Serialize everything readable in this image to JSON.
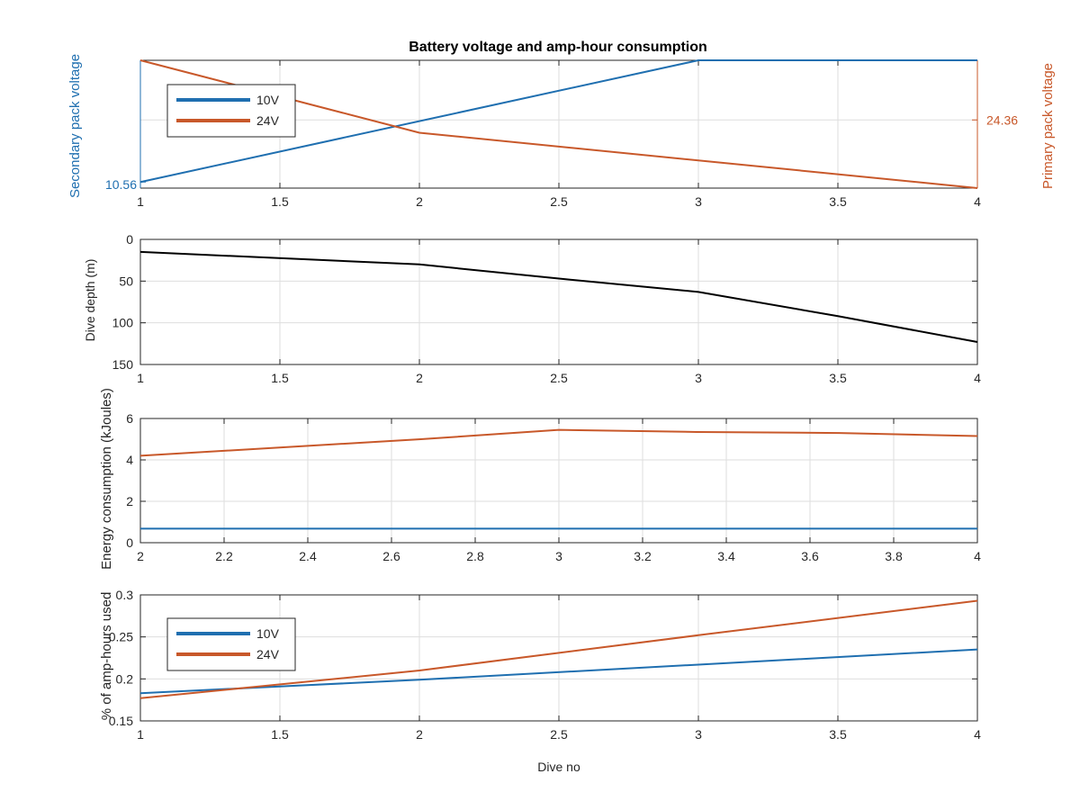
{
  "figure": {
    "title": "Battery voltage and amp-hour consumption",
    "colors": {
      "series_10v": "#1f6fb0",
      "series_24v": "#c8582a",
      "depth": "#000000",
      "grid": "#dedede",
      "axis": "#262626"
    }
  },
  "chart_data": [
    {
      "type": "line",
      "title": "Battery voltage and amp-hour consumption",
      "xlim": [
        1,
        4
      ],
      "x_ticks": [
        "1",
        "1.5",
        "2",
        "2.5",
        "3",
        "3.5",
        "4"
      ],
      "ylabel_left": "Secondary pack voltage",
      "ylabel_right": "Primary pack voltage",
      "y_tick_left": "10.56",
      "y_tick_right": "24.36",
      "grid": true,
      "legend": {
        "placement": "top-left",
        "entries": [
          "10V",
          "24V"
        ]
      },
      "series": [
        {
          "name": "10V",
          "axis": "left",
          "x": [
            1,
            3,
            4
          ],
          "y": [
            10.56,
            10.76,
            10.76
          ],
          "ylim": [
            10.55,
            10.76
          ]
        },
        {
          "name": "24V",
          "axis": "right",
          "x": [
            1,
            2,
            4
          ],
          "y": [
            24.5,
            24.33,
            24.2
          ],
          "ylim": [
            24.2,
            24.5
          ]
        }
      ]
    },
    {
      "type": "line",
      "xlim": [
        1,
        4
      ],
      "ylim": [
        0,
        150
      ],
      "y_reversed": true,
      "x_ticks": [
        "1",
        "1.5",
        "2",
        "2.5",
        "3",
        "3.5",
        "4"
      ],
      "y_ticks": [
        "0",
        "50",
        "100",
        "150"
      ],
      "ylabel": "Dive depth (m)",
      "grid": true,
      "series": [
        {
          "x": [
            1,
            2,
            2.5,
            3,
            3.5,
            4
          ],
          "y": [
            15,
            30,
            47,
            63,
            92,
            123
          ]
        }
      ]
    },
    {
      "type": "line",
      "xlim": [
        2,
        4
      ],
      "ylim": [
        0,
        6
      ],
      "x_ticks": [
        "2",
        "2.2",
        "2.4",
        "2.6",
        "2.8",
        "3",
        "3.2",
        "3.4",
        "3.6",
        "3.8",
        "4"
      ],
      "y_ticks": [
        "0",
        "2",
        "4",
        "6"
      ],
      "ylabel": "Energy consumption (kJoules)",
      "grid": true,
      "series": [
        {
          "x": [
            2,
            2.67,
            3,
            3.33,
            3.67,
            4
          ],
          "y": [
            4.2,
            5.0,
            5.45,
            5.35,
            5.3,
            5.15
          ]
        },
        {
          "x": [
            2,
            4
          ],
          "y": [
            0.68,
            0.68
          ]
        }
      ]
    },
    {
      "type": "line",
      "xlim": [
        1,
        4
      ],
      "ylim": [
        0.15,
        0.3
      ],
      "x_ticks": [
        "1",
        "1.5",
        "2",
        "2.5",
        "3",
        "3.5",
        "4"
      ],
      "y_ticks": [
        "0.15",
        "0.2",
        "0.25",
        "0.3"
      ],
      "xlabel": "Dive no",
      "ylabel": "% of amp-hours used",
      "grid": true,
      "legend": {
        "placement": "bottom-left",
        "entries": [
          "10V",
          "24V"
        ]
      },
      "series": [
        {
          "name": "10V",
          "x": [
            1,
            2,
            3,
            4
          ],
          "y": [
            0.183,
            0.199,
            0.217,
            0.235
          ]
        },
        {
          "name": "24V",
          "x": [
            1,
            2,
            3,
            4
          ],
          "y": [
            0.177,
            0.21,
            0.252,
            0.293
          ]
        }
      ]
    }
  ]
}
